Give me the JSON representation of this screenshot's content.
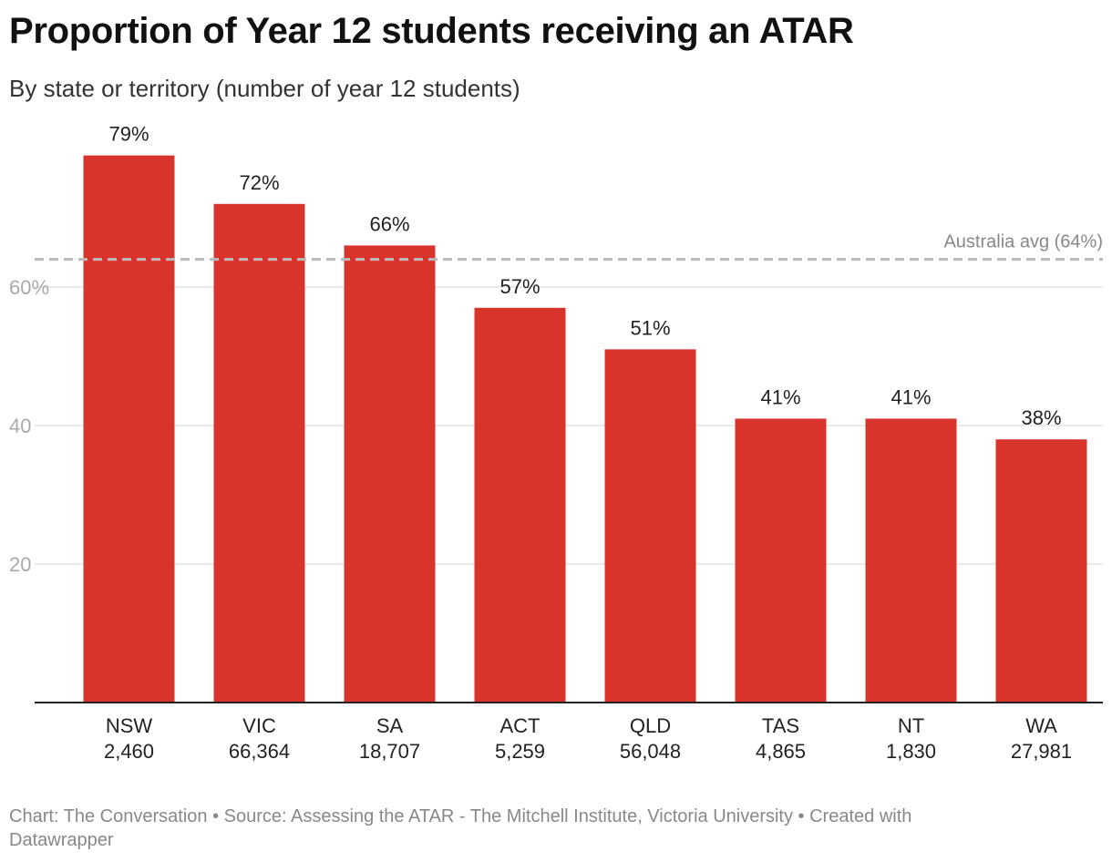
{
  "header": {
    "title": "Proportion of Year 12 students receiving an ATAR",
    "subtitle": "By state or territory (number of year 12 students)"
  },
  "chart_data": {
    "type": "bar",
    "title": "Proportion of Year 12 students receiving an ATAR",
    "subtitle": "By state or territory (number of year 12 students)",
    "categories": [
      "NSW",
      "VIC",
      "SA",
      "ACT",
      "QLD",
      "TAS",
      "NT",
      "WA"
    ],
    "category_sublabels": [
      "2,460",
      "66,364",
      "18,707",
      "5,259",
      "56,048",
      "4,865",
      "1,830",
      "27,981"
    ],
    "values": [
      79,
      72,
      66,
      57,
      51,
      41,
      41,
      38
    ],
    "value_labels": [
      "79%",
      "72%",
      "66%",
      "57%",
      "51%",
      "41%",
      "41%",
      "38%"
    ],
    "yticks": [
      20,
      40,
      60
    ],
    "ytick_labels": [
      "20",
      "40",
      "60%"
    ],
    "ylim": [
      0,
      80
    ],
    "grid": true,
    "reference_line": {
      "value": 64,
      "label": "Australia avg (64%)"
    },
    "colors": {
      "bar": "#d9342b",
      "grid": "#e3e3e3",
      "ref_line": "#bbbbbb",
      "axis": "#222222",
      "tick_label": "#aaaaaa"
    }
  },
  "footer": {
    "chart_credit": "Chart: The Conversation",
    "separator": " • ",
    "source": "Source: Assessing the ATAR - The Mitchell Institute, Victoria University",
    "created_with": "Created with Datawrapper"
  }
}
